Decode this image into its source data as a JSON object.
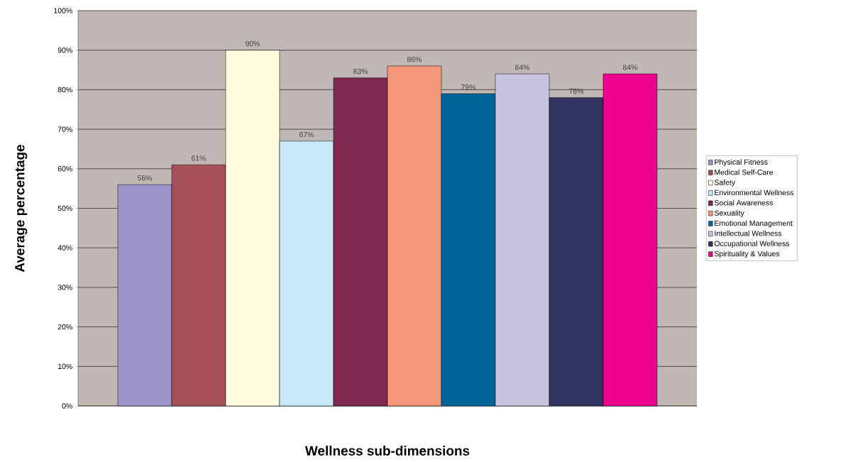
{
  "chart_data": {
    "type": "bar",
    "xlabel": "Wellness sub-dimensions",
    "ylabel": "Average percentage",
    "categories": [
      null
    ],
    "series": [
      {
        "name": "Physical Fitness",
        "color": "#9c94c8",
        "values": [
          56
        ],
        "value_labels": [
          "56%"
        ]
      },
      {
        "name": "Medical Self-Care",
        "color": "#a5505a",
        "values": [
          61
        ],
        "value_labels": [
          "61%"
        ]
      },
      {
        "name": "Safety",
        "color": "#fffadc",
        "values": [
          90
        ],
        "value_labels": [
          "90%"
        ]
      },
      {
        "name": "Environmental Wellness",
        "color": "#c8e8f8",
        "values": [
          67
        ],
        "value_labels": [
          "67%"
        ]
      },
      {
        "name": "Social Awareness",
        "color": "#7f2850",
        "values": [
          83
        ],
        "value_labels": [
          "83%"
        ]
      },
      {
        "name": "Sexuality",
        "color": "#f4977a",
        "values": [
          86
        ],
        "value_labels": [
          "86%"
        ]
      },
      {
        "name": "Emotional Management",
        "color": "#00669a",
        "values": [
          79
        ],
        "value_labels": [
          "79%"
        ]
      },
      {
        "name": "Intellectual Wellness",
        "color": "#c8c4e0",
        "values": [
          84
        ],
        "value_labels": [
          "84%"
        ]
      },
      {
        "name": "Occupational Wellness",
        "color": "#33335f",
        "values": [
          78
        ],
        "value_labels": [
          "78%"
        ]
      },
      {
        "name": "Spirituality & Values",
        "color": "#ec008c",
        "values": [
          84
        ],
        "value_labels": [
          "84%"
        ]
      }
    ],
    "ylim": [
      0,
      100
    ],
    "yticks": [
      {
        "value": 0,
        "label": "0%"
      },
      {
        "value": 10,
        "label": "10%"
      },
      {
        "value": 20,
        "label": "20%"
      },
      {
        "value": 30,
        "label": "30%"
      },
      {
        "value": 40,
        "label": "40%"
      },
      {
        "value": 50,
        "label": "50%"
      },
      {
        "value": 60,
        "label": "60%"
      },
      {
        "value": 70,
        "label": "70%"
      },
      {
        "value": 80,
        "label": "80%"
      },
      {
        "value": 90,
        "label": "90%"
      },
      {
        "value": 100,
        "label": "100%"
      }
    ],
    "grid": "y",
    "legend": "right"
  }
}
